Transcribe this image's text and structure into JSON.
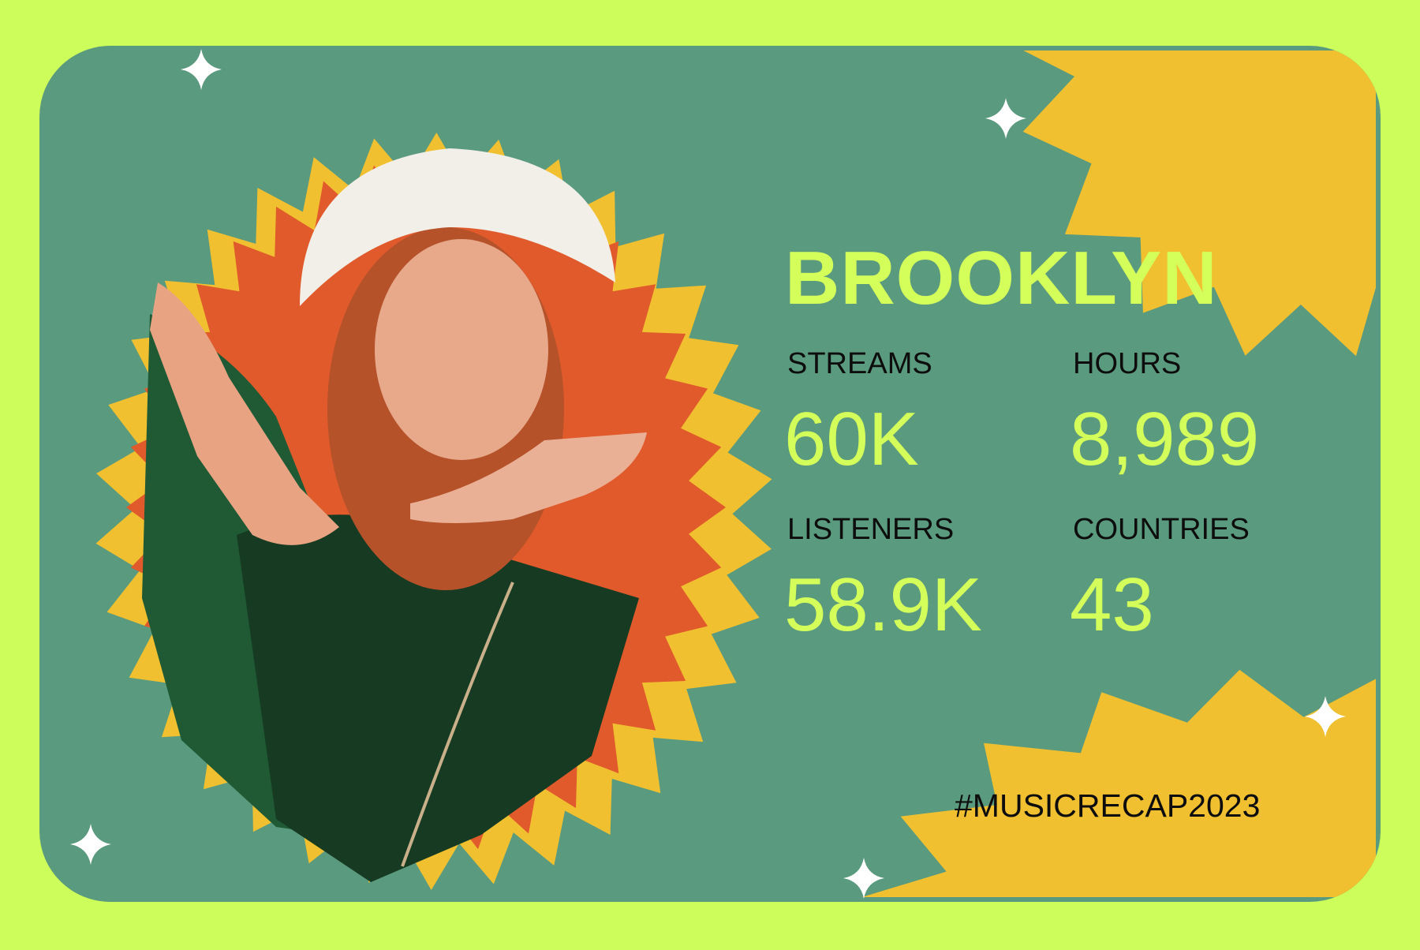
{
  "title": "BROOKLYN",
  "stats": [
    {
      "label": "STREAMS",
      "value": "60K"
    },
    {
      "label": "HOURS",
      "value": "8,989"
    },
    {
      "label": "LISTENERS",
      "value": "58.9K"
    },
    {
      "label": "COUNTRIES",
      "value": "43"
    }
  ],
  "hashtag": "#MUSICRECAP2023",
  "colors": {
    "background": "#cdfd5b",
    "card": "#5a9a7e",
    "accent_lime": "#d4ff5a",
    "burst_yellow": "#f0c030",
    "burst_orange": "#e05a2b",
    "text_dark": "#0d0d0d"
  },
  "icons": [
    "sparkle-icon"
  ]
}
